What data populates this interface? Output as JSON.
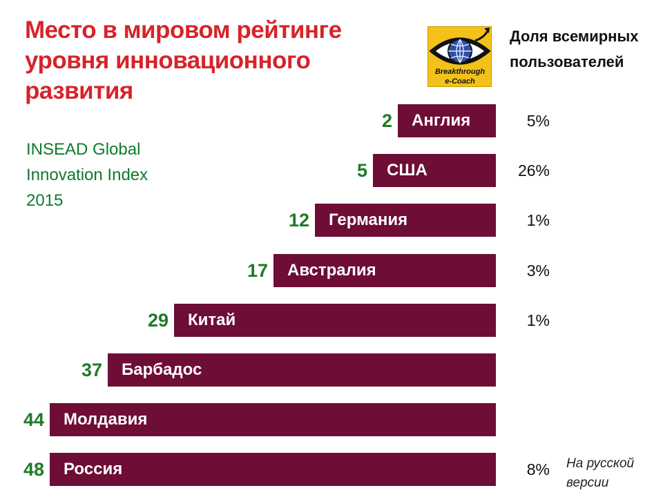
{
  "title": "Место в мировом рейтинге уровня инновационного развития",
  "source": {
    "line1": "INSEAD Global",
    "line2": "Innovation Index",
    "line3": "2015"
  },
  "logo": {
    "text1": "Breakthrough",
    "text2": "e-Coach",
    "icon": "eye-globe-icon"
  },
  "share_header": "Доля всемирных пользователей",
  "note": "На русской версии",
  "colors": {
    "title": "#d7232a",
    "bar": "#6e0d36",
    "rank": "#1f7a28",
    "source": "#0f7a2c"
  },
  "chart_data": {
    "type": "bar",
    "orientation": "horizontal",
    "title": "Место в мировом рейтинге уровня инновационного развития",
    "categories": [
      "Англия",
      "США",
      "Германия",
      "Австралия",
      "Китай",
      "Барбадос",
      "Молдавия",
      "Россия"
    ],
    "ranks": [
      2,
      5,
      12,
      17,
      29,
      37,
      44,
      48
    ],
    "shares": [
      "5%",
      "26%",
      "1%",
      "3%",
      "1%",
      "",
      "",
      "8%"
    ],
    "rank_labels": [
      "2",
      "5",
      "12",
      "17",
      "29",
      "37",
      "44",
      "48"
    ],
    "grid": false,
    "legend": "none"
  }
}
